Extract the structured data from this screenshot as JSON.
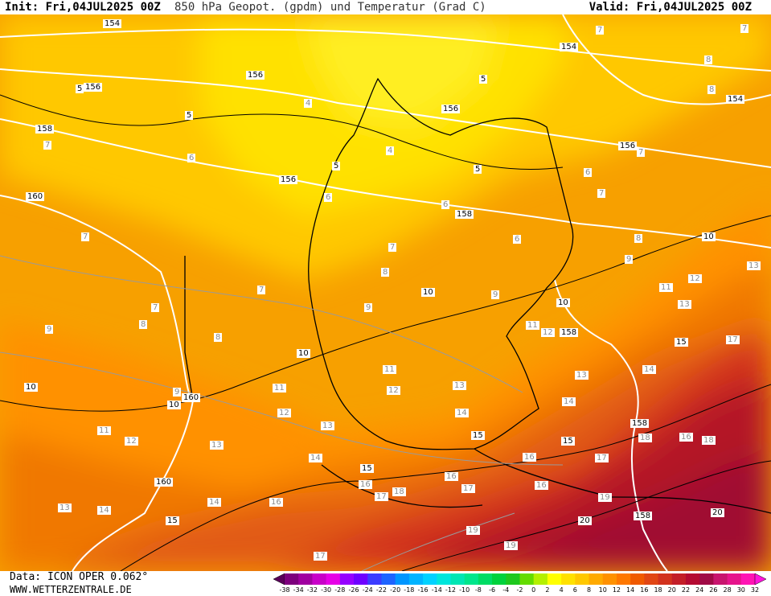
{
  "header": {
    "init": "Init: Fri,04JUL2025 00Z",
    "title": "850 hPa Geopot. (gpdm) und Temperatur (Grad C)",
    "valid": "Valid: Fri,04JUL2025 00Z"
  },
  "footer": {
    "data_source": "Data: ICON OPER 0.062°",
    "url": "WWW.WETTERZENTRALE.DE"
  },
  "color_scale": {
    "values": [
      "-38",
      "-34",
      "-32",
      "-30",
      "-28",
      "-26",
      "-24",
      "-22",
      "-20",
      "-18",
      "-16",
      "-14",
      "-12",
      "-10",
      "-8",
      "-6",
      "-4",
      "-2",
      "0",
      "2",
      "4",
      "6",
      "8",
      "10",
      "12",
      "14",
      "16",
      "18",
      "20",
      "22",
      "24",
      "26",
      "28",
      "30",
      "32"
    ],
    "colors": [
      "#5a005a",
      "#7d007d",
      "#a000a0",
      "#c800c8",
      "#e600e6",
      "#9600ff",
      "#6e00ff",
      "#3c3cff",
      "#1e64ff",
      "#0096ff",
      "#00b4ff",
      "#00d2ff",
      "#00e6dc",
      "#00e6b4",
      "#00e68c",
      "#00dc64",
      "#00d23c",
      "#1ec81e",
      "#64dc00",
      "#b4f000",
      "#ffff00",
      "#ffe100",
      "#ffc800",
      "#ffaa00",
      "#ff9100",
      "#ff7800",
      "#f05a00",
      "#e14614",
      "#d2321e",
      "#c31e28",
      "#b40a32",
      "#a00a46",
      "#c8146e",
      "#e6148c",
      "#ff14b4",
      "#ff14dc"
    ]
  },
  "map": {
    "geopotential_labels": [
      {
        "text": "154"
      },
      {
        "text": "154"
      },
      {
        "text": "154"
      },
      {
        "text": "156"
      },
      {
        "text": "156"
      },
      {
        "text": "156"
      },
      {
        "text": "156"
      },
      {
        "text": "156"
      },
      {
        "text": "158"
      },
      {
        "text": "158"
      },
      {
        "text": "158"
      },
      {
        "text": "158"
      },
      {
        "text": "158"
      },
      {
        "text": "160"
      },
      {
        "text": "160"
      },
      {
        "text": "160"
      }
    ],
    "temperature_labels_black": [
      {
        "text": "5"
      },
      {
        "text": "5"
      },
      {
        "text": "5"
      },
      {
        "text": "5"
      },
      {
        "text": "5"
      },
      {
        "text": "10"
      },
      {
        "text": "10"
      },
      {
        "text": "10"
      },
      {
        "text": "10"
      },
      {
        "text": "10"
      },
      {
        "text": "10"
      },
      {
        "text": "15"
      },
      {
        "text": "15"
      },
      {
        "text": "15"
      },
      {
        "text": "15"
      },
      {
        "text": "15"
      },
      {
        "text": "20"
      },
      {
        "text": "20"
      }
    ],
    "temperature_labels_grey": [
      {
        "text": "4"
      },
      {
        "text": "4"
      },
      {
        "text": "6"
      },
      {
        "text": "6"
      },
      {
        "text": "6"
      },
      {
        "text": "6"
      },
      {
        "text": "6"
      },
      {
        "text": "7"
      },
      {
        "text": "7"
      },
      {
        "text": "7"
      },
      {
        "text": "7"
      },
      {
        "text": "7"
      },
      {
        "text": "7"
      },
      {
        "text": "7"
      },
      {
        "text": "7"
      },
      {
        "text": "7"
      },
      {
        "text": "8"
      },
      {
        "text": "8"
      },
      {
        "text": "8"
      },
      {
        "text": "8"
      },
      {
        "text": "8"
      },
      {
        "text": "8"
      },
      {
        "text": "9"
      },
      {
        "text": "9"
      },
      {
        "text": "9"
      },
      {
        "text": "9"
      },
      {
        "text": "9"
      },
      {
        "text": "11"
      },
      {
        "text": "11"
      },
      {
        "text": "11"
      },
      {
        "text": "11"
      },
      {
        "text": "11"
      },
      {
        "text": "12"
      },
      {
        "text": "12"
      },
      {
        "text": "12"
      },
      {
        "text": "12"
      },
      {
        "text": "12"
      },
      {
        "text": "13"
      },
      {
        "text": "13"
      },
      {
        "text": "13"
      },
      {
        "text": "13"
      },
      {
        "text": "13"
      },
      {
        "text": "13"
      },
      {
        "text": "13"
      },
      {
        "text": "14"
      },
      {
        "text": "14"
      },
      {
        "text": "14"
      },
      {
        "text": "14"
      },
      {
        "text": "14"
      },
      {
        "text": "14"
      },
      {
        "text": "16"
      },
      {
        "text": "16"
      },
      {
        "text": "16"
      },
      {
        "text": "16"
      },
      {
        "text": "16"
      },
      {
        "text": "16"
      },
      {
        "text": "17"
      },
      {
        "text": "17"
      },
      {
        "text": "17"
      },
      {
        "text": "17"
      },
      {
        "text": "17"
      },
      {
        "text": "18"
      },
      {
        "text": "18"
      },
      {
        "text": "18"
      },
      {
        "text": "19"
      },
      {
        "text": "19"
      },
      {
        "text": "19"
      }
    ]
  }
}
